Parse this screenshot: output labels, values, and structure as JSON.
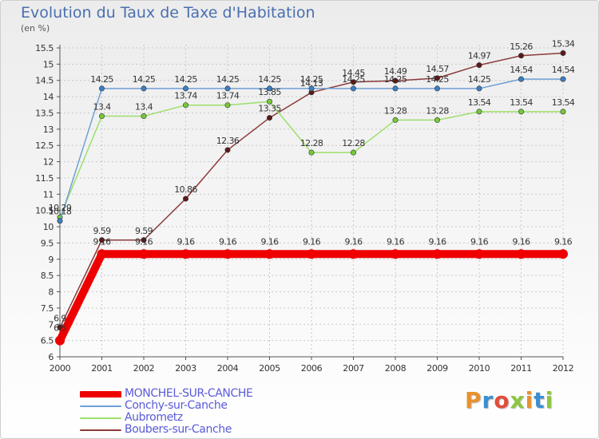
{
  "page": {
    "title": "Evolution du Taux de Taxe d'Habitation",
    "unit": "(en %)"
  },
  "logo": {
    "text": "Proxiti",
    "colors": [
      "#e8912f",
      "#3a8fd0",
      "#e24c3b",
      "#8cc63f",
      "#e8912f",
      "#3a8fd0",
      "#8cc63f"
    ]
  },
  "chart_data": {
    "type": "line",
    "title": "Evolution du Taux de Taxe d'Habitation",
    "ylabel": "(en %)",
    "xlabel": "",
    "x": [
      "2000",
      "2001",
      "2002",
      "2003",
      "2004",
      "2005",
      "2006",
      "2007",
      "2008",
      "2009",
      "2010",
      "2011",
      "2012"
    ],
    "ylim": [
      6,
      15.5
    ],
    "yticks": [
      "6",
      "6.5",
      "7",
      "7.5",
      "8",
      "8.5",
      "9",
      "9.5",
      "10",
      "10.5",
      "11",
      "11.5",
      "12",
      "12.5",
      "13",
      "13.5",
      "14",
      "14.5",
      "15",
      "15.5"
    ],
    "grid": true,
    "legend": "bottom-left",
    "series": [
      {
        "name": "MONCHEL-SUR-CANCHE",
        "color": "#ee0000",
        "values": [
          6.5,
          9.16,
          9.16,
          9.16,
          9.16,
          9.16,
          9.16,
          9.16,
          9.16,
          9.16,
          9.16,
          9.16,
          9.16
        ],
        "labels": [
          "6.5",
          "9.16",
          "9.16",
          "9.16",
          "9.16",
          "9.16",
          "9.16",
          "9.16",
          "9.16",
          "9.16",
          "9.16",
          "9.16",
          "9.16"
        ]
      },
      {
        "name": "Conchy-sur-Canche",
        "color": "#6fa0d6",
        "values": [
          10.18,
          14.25,
          14.25,
          14.25,
          14.25,
          14.25,
          14.25,
          14.25,
          14.25,
          14.25,
          14.25,
          14.54,
          14.54
        ],
        "labels": [
          "10.18",
          "14.25",
          "14.25",
          "14.25",
          "14.25",
          "14.25",
          "14.25",
          "14.25",
          "14.25",
          "14.25",
          "14.25",
          "14.54",
          "14.54"
        ]
      },
      {
        "name": "Aubrometz",
        "color": "#9ddf6a",
        "values": [
          10.29,
          13.4,
          13.4,
          13.74,
          13.74,
          13.85,
          12.28,
          12.28,
          13.28,
          13.28,
          13.54,
          13.54,
          13.54
        ],
        "labels": [
          "10.29",
          "13.4",
          "13.4",
          "13.74",
          "13.74",
          "13.85",
          "12.28",
          "12.28",
          "13.28",
          "13.28",
          "13.54",
          "13.54",
          "13.54"
        ]
      },
      {
        "name": "Boubers-sur-Canche",
        "color": "#8b3a3a",
        "values": [
          6.9,
          9.59,
          9.59,
          10.86,
          12.36,
          13.35,
          14.13,
          14.45,
          14.49,
          14.57,
          14.97,
          15.26,
          15.34
        ],
        "labels": [
          "6.9",
          "9.59",
          "9.59",
          "10.86",
          "12.36",
          "13.35",
          "14.13",
          "14.45",
          "14.49",
          "14.57",
          "14.97",
          "15.26",
          "15.34"
        ]
      }
    ]
  }
}
